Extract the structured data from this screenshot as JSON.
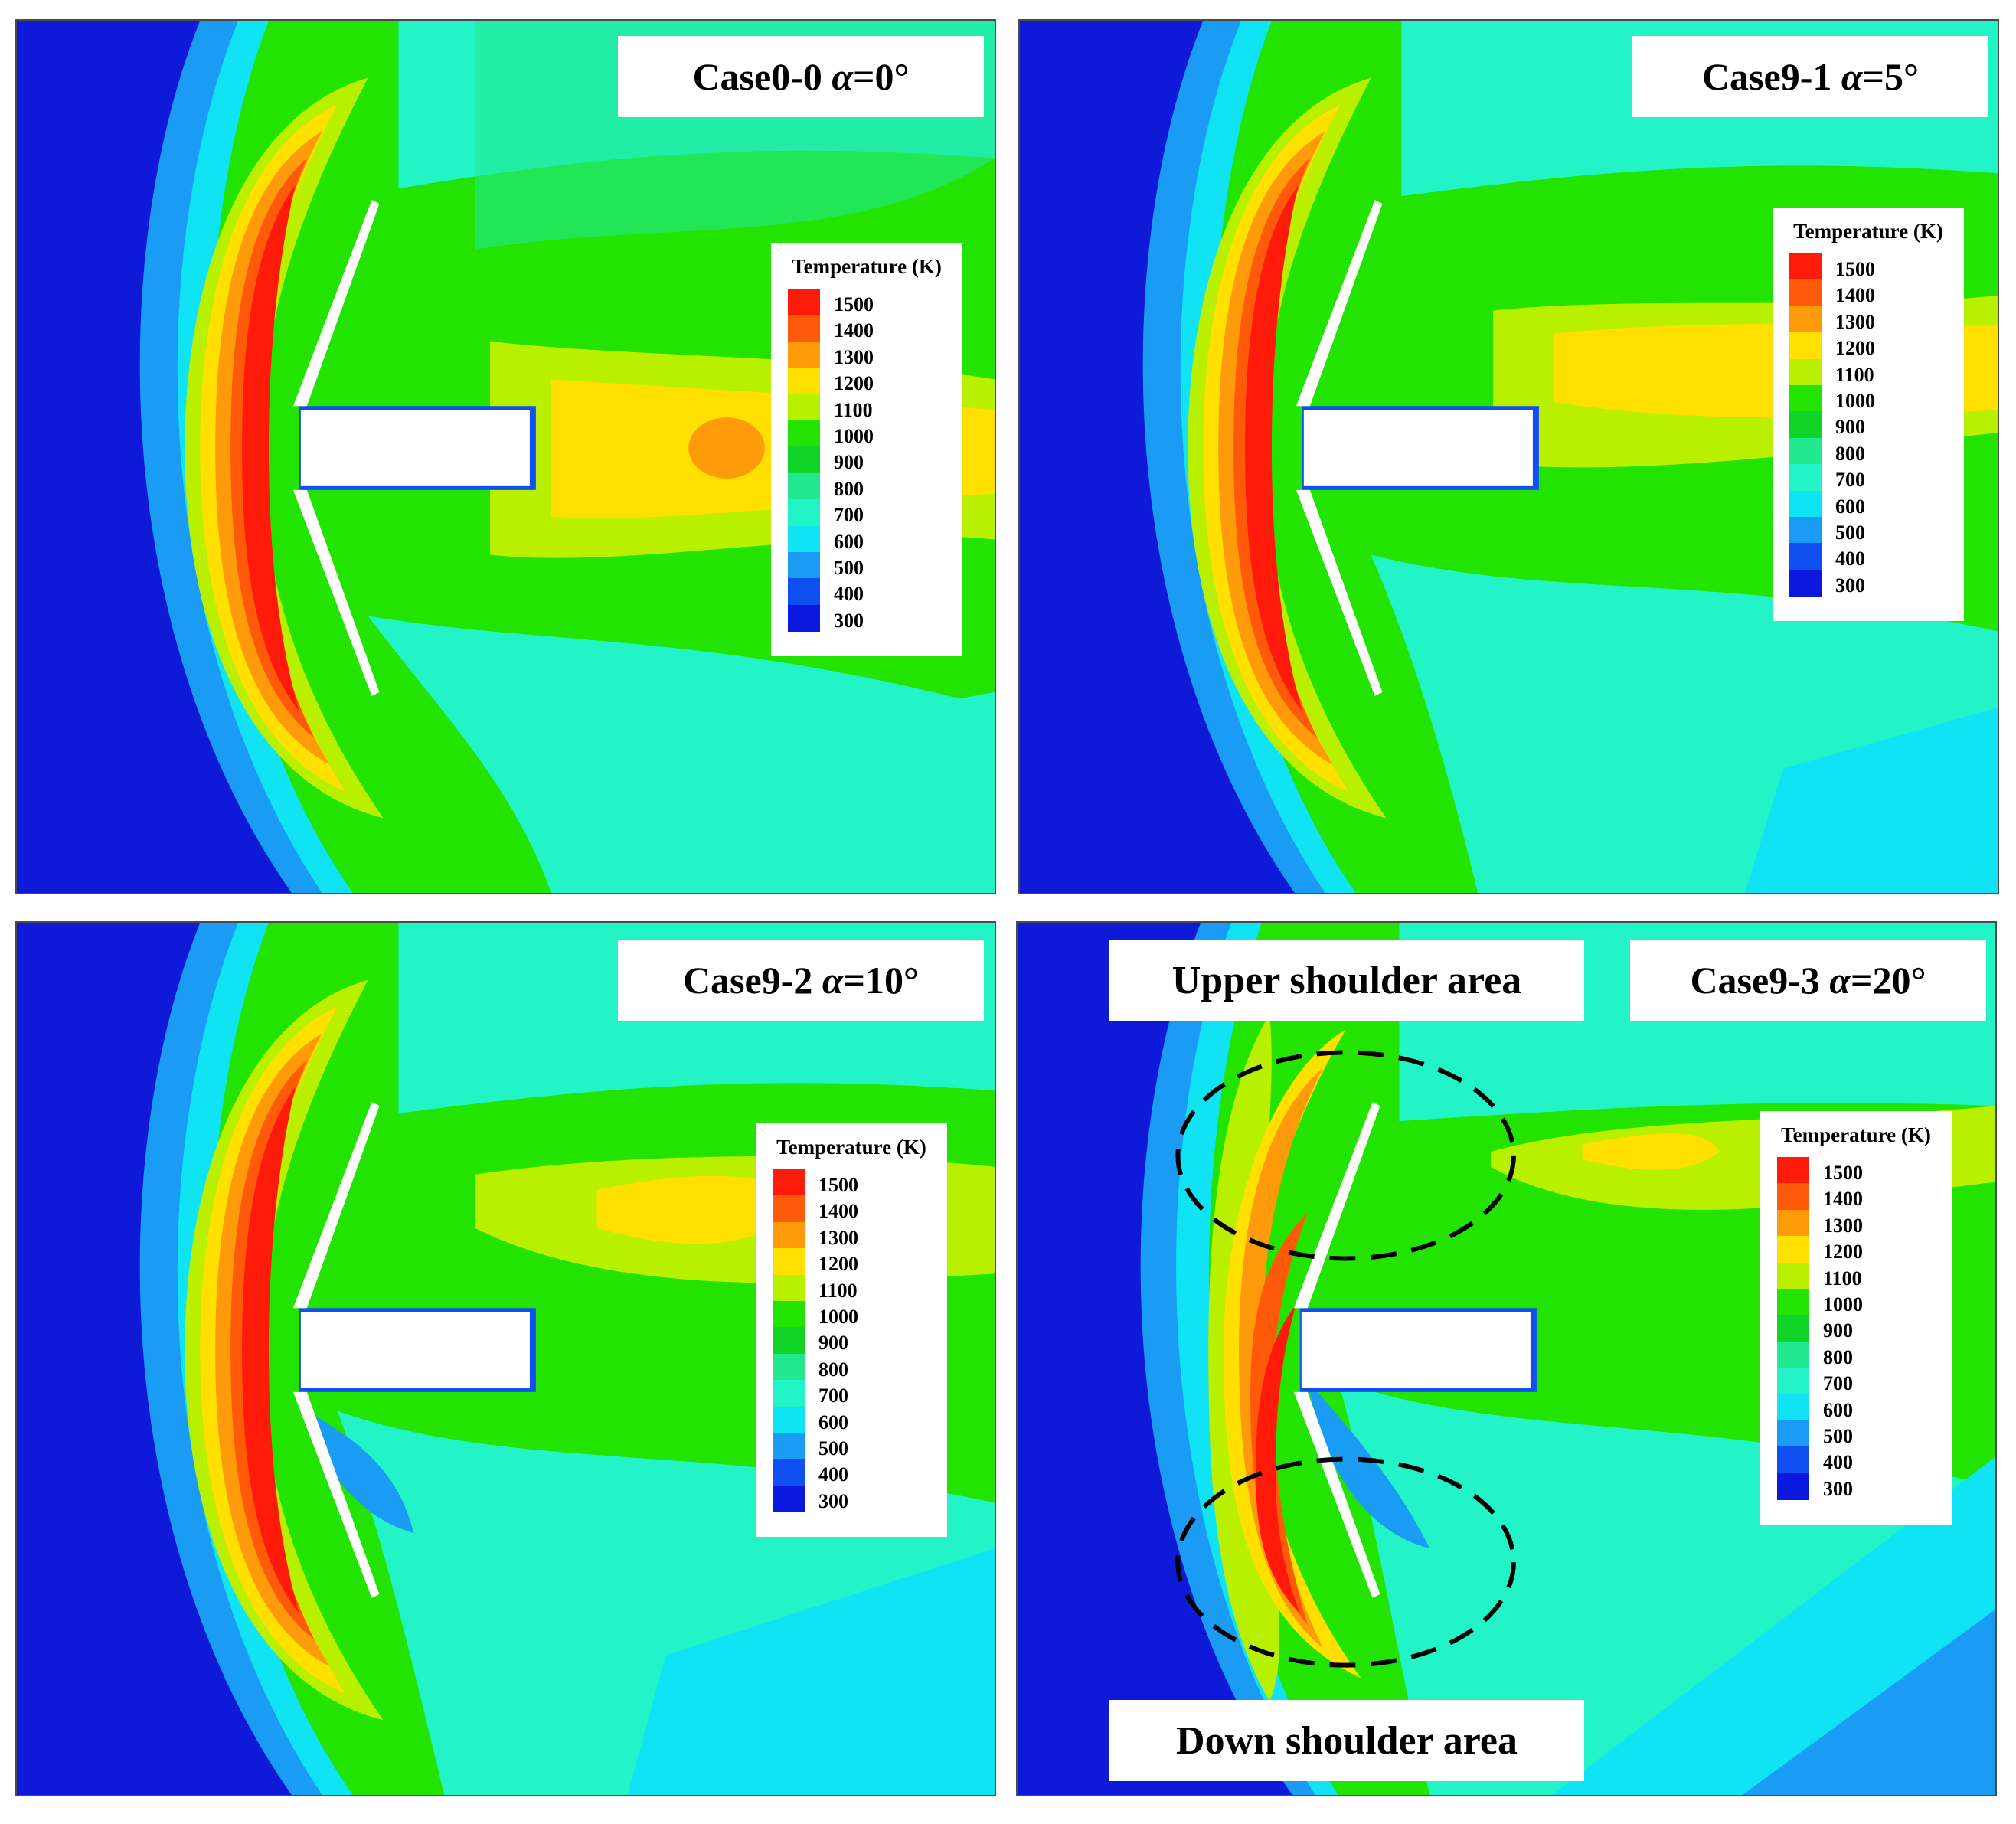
{
  "panels": [
    {
      "case": "Case0-0",
      "alpha_symbol": "α",
      "alpha_value": "=0°"
    },
    {
      "case": "Case9-1",
      "alpha_symbol": "α",
      "alpha_value": "=5°"
    },
    {
      "case": "Case9-2",
      "alpha_symbol": "α",
      "alpha_value": "=10°"
    },
    {
      "case": "Case9-3",
      "alpha_symbol": "α",
      "alpha_value": "=20°"
    }
  ],
  "legend": {
    "title": "Temperature (K)",
    "ticks": [
      "1500",
      "1400",
      "1300",
      "1200",
      "1100",
      "1000",
      "900",
      "800",
      "700",
      "600",
      "500",
      "400",
      "300"
    ],
    "colors": [
      "#ff1a0a",
      "#ff5a0a",
      "#ff9a0a",
      "#ffe000",
      "#b8f000",
      "#22e400",
      "#10d428",
      "#22e890",
      "#22f4c8",
      "#10e4f4",
      "#1a9cf4",
      "#1050f0",
      "#0a18e0"
    ]
  },
  "annotations": {
    "upper": "Upper shoulder area",
    "down": "Down shoulder area"
  },
  "colors": {
    "freestream": "#0e1ad8",
    "wake": "#22f0c6",
    "body": "#ffffff",
    "dashed_outline": "#000000"
  }
}
